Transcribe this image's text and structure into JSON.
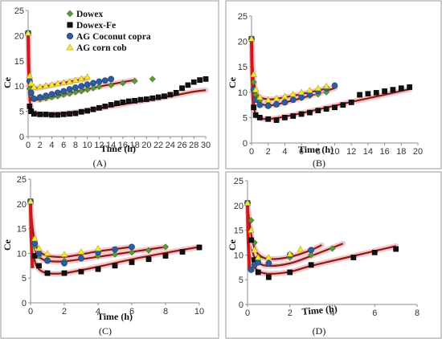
{
  "colors": {
    "dowex": "#5a9a3a",
    "dowex_fe": "#111111",
    "ag_coconut": "#2e5d9f",
    "ag_corn": "#f2ea3a",
    "fit_curve": "#8b1c10",
    "fit_shadow": "#f3c7cf",
    "fit_spike": "#cc1a1a"
  },
  "legend": [
    "Dowex",
    "Dowex-Fe",
    "AG Coconut copra",
    "AG corn cob"
  ],
  "chart_data": [
    {
      "type": "scatter",
      "panel_label": "(A)",
      "xlabel": "Time (h)",
      "ylabel": "Ce",
      "xlim": [
        0,
        30
      ],
      "ylim": [
        0,
        25
      ],
      "xticks": [
        0,
        2,
        4,
        6,
        8,
        10,
        12,
        14,
        16,
        18,
        20,
        22,
        24,
        26,
        28,
        30
      ],
      "yticks": [
        0,
        5,
        10,
        15,
        20,
        25
      ],
      "legend_position": "top-right",
      "series": [
        {
          "name": "Dowex",
          "marker": "diamond",
          "color_key": "dowex",
          "x": [
            0,
            0.25,
            0.5,
            1,
            2,
            3,
            4,
            5,
            6,
            7,
            8,
            9,
            10,
            11,
            12,
            14,
            16,
            18,
            21
          ],
          "y": [
            20.5,
            9.5,
            8.3,
            7.4,
            7.4,
            7.6,
            7.8,
            8.0,
            8.3,
            8.5,
            8.8,
            9.0,
            9.3,
            9.6,
            9.9,
            10.2,
            10.6,
            11.0,
            11.4
          ]
        },
        {
          "name": "Dowex-Fe",
          "marker": "square",
          "color_key": "dowex_fe",
          "x": [
            0,
            0.25,
            0.5,
            1,
            2,
            3,
            4,
            5,
            6,
            7,
            8,
            9,
            10,
            11,
            12,
            13,
            14,
            15,
            16,
            17,
            18,
            19,
            20,
            21,
            22,
            23,
            24,
            25,
            26,
            27,
            28,
            29,
            30
          ],
          "y": [
            20.5,
            6.0,
            5.0,
            4.5,
            4.4,
            4.4,
            4.3,
            4.3,
            4.4,
            4.5,
            4.6,
            4.9,
            5.1,
            5.4,
            5.7,
            6.0,
            6.3,
            6.6,
            6.8,
            7.0,
            7.1,
            7.3,
            7.4,
            7.6,
            7.8,
            8.0,
            8.3,
            8.7,
            9.6,
            10.2,
            10.8,
            11.2,
            11.4
          ]
        },
        {
          "name": "AG Coconut copra",
          "marker": "circle",
          "color_key": "ag_coconut",
          "x": [
            0,
            0.25,
            0.5,
            1,
            2,
            3,
            4,
            5,
            6,
            7,
            8,
            9,
            10,
            11,
            12,
            13,
            14
          ],
          "y": [
            20.5,
            11.0,
            8.7,
            7.5,
            7.8,
            8.1,
            8.4,
            8.7,
            9.0,
            9.4,
            9.7,
            10.0,
            10.3,
            10.6,
            10.9,
            11.1,
            11.4
          ]
        },
        {
          "name": "AG corn cob",
          "marker": "triangle",
          "color_key": "ag_corn",
          "x": [
            0,
            0.25,
            0.5,
            1,
            2,
            3,
            4,
            5,
            6,
            7,
            8,
            9,
            10
          ],
          "y": [
            20.5,
            12.0,
            10.5,
            9.8,
            9.9,
            10.1,
            10.3,
            10.5,
            10.7,
            10.9,
            11.2,
            11.5,
            11.8
          ]
        }
      ],
      "fit_curves": [
        {
          "x": [
            0,
            0.15,
            0.3,
            0.6,
            1,
            2,
            4,
            8,
            12,
            16,
            20,
            24,
            28,
            30
          ],
          "y": [
            20.5,
            11,
            7,
            5.2,
            4.8,
            4.4,
            4.4,
            4.8,
            5.6,
            6.4,
            7.2,
            8.0,
            8.9,
            9.2
          ]
        },
        {
          "x": [
            0,
            0.15,
            0.3,
            0.6,
            1,
            2,
            4,
            8,
            12,
            16,
            18
          ],
          "y": [
            20.5,
            13,
            9.5,
            7.8,
            7.4,
            7.3,
            7.8,
            8.9,
            9.9,
            10.8,
            11.2
          ]
        },
        {
          "x": [
            0,
            0.15,
            0.3,
            0.6,
            1,
            2,
            4,
            8,
            10
          ],
          "y": [
            20.5,
            14,
            11,
            9.8,
            9.6,
            9.7,
            10.2,
            11.1,
            11.5
          ]
        }
      ]
    },
    {
      "type": "scatter",
      "panel_label": "(B)",
      "xlabel": "Time (h)",
      "ylabel": "Ce",
      "xlim": [
        0,
        20
      ],
      "ylim": [
        0,
        25
      ],
      "xticks": [
        0,
        2,
        4,
        6,
        8,
        10,
        12,
        14,
        16,
        18,
        20
      ],
      "yticks": [
        0,
        5,
        10,
        15,
        20,
        25
      ],
      "series": [
        {
          "name": "Dowex",
          "marker": "diamond",
          "color_key": "dowex",
          "x": [
            0,
            0.25,
            0.5,
            1,
            2,
            3,
            4,
            5,
            6,
            7,
            8,
            9
          ],
          "y": [
            20.5,
            12.0,
            9.5,
            8.4,
            7.6,
            7.8,
            8.1,
            8.5,
            8.9,
            9.3,
            9.6,
            10.0
          ]
        },
        {
          "name": "Dowex-Fe",
          "marker": "square",
          "color_key": "dowex_fe",
          "x": [
            0,
            0.25,
            0.5,
            1,
            2,
            3,
            4,
            5,
            6,
            7,
            8,
            9,
            10,
            11,
            12,
            13,
            14,
            15,
            16,
            17,
            18,
            19
          ],
          "y": [
            20.5,
            7.0,
            5.5,
            5.0,
            4.7,
            4.5,
            5.0,
            5.3,
            5.7,
            6.0,
            6.4,
            6.7,
            7.0,
            7.5,
            8.0,
            9.5,
            9.7,
            9.9,
            10.2,
            10.5,
            10.8,
            11.0
          ]
        },
        {
          "name": "AG Coconut copra",
          "marker": "circle",
          "color_key": "ag_coconut",
          "x": [
            0,
            0.25,
            0.5,
            1,
            2,
            3,
            4,
            5,
            6,
            7,
            8,
            9,
            10
          ],
          "y": [
            20.5,
            10.5,
            8.5,
            7.5,
            7.3,
            7.6,
            8.0,
            8.5,
            9.0,
            9.6,
            10.2,
            10.8,
            11.3
          ]
        },
        {
          "name": "AG corn cob",
          "marker": "triangle",
          "color_key": "ag_corn",
          "x": [
            0,
            0.25,
            0.5,
            1,
            2,
            3,
            4,
            5,
            6,
            7,
            8,
            9
          ],
          "y": [
            20.5,
            13.5,
            10.5,
            9.0,
            8.5,
            8.8,
            9.2,
            9.6,
            10.0,
            10.4,
            10.8,
            11.2
          ]
        }
      ],
      "fit_curves": [
        {
          "x": [
            0,
            0.15,
            0.3,
            0.6,
            1,
            2,
            4,
            8,
            12,
            16,
            19
          ],
          "y": [
            20.5,
            11,
            7,
            5.3,
            4.9,
            4.7,
            5.2,
            6.6,
            8.1,
            9.5,
            10.6
          ]
        },
        {
          "x": [
            0,
            0.15,
            0.3,
            0.6,
            1,
            2,
            3,
            5,
            7,
            9,
            10
          ],
          "y": [
            20.5,
            14,
            10.5,
            8.6,
            7.8,
            7.4,
            7.6,
            8.4,
            9.3,
            10.3,
            10.8
          ]
        },
        {
          "x": [
            0,
            0.15,
            0.3,
            0.6,
            1,
            2,
            3,
            5,
            7,
            9
          ],
          "y": [
            20.5,
            15,
            12,
            9.8,
            9.0,
            8.6,
            8.7,
            9.3,
            10.0,
            10.7
          ]
        }
      ]
    },
    {
      "type": "scatter",
      "panel_label": "(C)",
      "xlabel": "Time (h)",
      "ylabel": "Ce",
      "xlim": [
        0,
        10
      ],
      "ylim": [
        0,
        25
      ],
      "xticks": [
        0,
        2,
        4,
        6,
        8,
        10
      ],
      "yticks": [
        0,
        5,
        10,
        15,
        20,
        25
      ],
      "series": [
        {
          "name": "Dowex",
          "marker": "diamond",
          "color_key": "dowex",
          "x": [
            0,
            0.25,
            0.5,
            1,
            2,
            3,
            4,
            5,
            6,
            7,
            8
          ],
          "y": [
            20.5,
            11.5,
            9.5,
            8.8,
            8.5,
            9.0,
            9.5,
            9.8,
            10.2,
            10.6,
            11.3
          ]
        },
        {
          "name": "Dowex-Fe",
          "marker": "square",
          "color_key": "dowex_fe",
          "x": [
            0,
            0.25,
            0.5,
            1,
            2,
            3,
            4,
            5,
            6,
            7,
            8,
            9,
            10
          ],
          "y": [
            20.5,
            9.5,
            7.5,
            6.0,
            6.0,
            6.3,
            6.8,
            7.5,
            8.2,
            8.8,
            9.5,
            10.3,
            11.2
          ]
        },
        {
          "name": "AG Coconut copra",
          "marker": "circle",
          "color_key": "ag_coconut",
          "x": [
            0,
            0.25,
            0.5,
            1,
            2,
            3,
            4,
            5,
            6
          ],
          "y": [
            20.5,
            12.0,
            10.0,
            8.5,
            8.0,
            9.0,
            10.2,
            10.8,
            11.3
          ]
        },
        {
          "name": "AG corn cob",
          "marker": "triangle",
          "color_key": "ag_corn",
          "x": [
            0,
            0.25,
            0.5,
            1,
            2,
            3,
            4
          ],
          "y": [
            20.5,
            13.0,
            11.0,
            10.0,
            9.8,
            10.3,
            11.0
          ]
        }
      ],
      "fit_curves": [
        {
          "x": [
            0,
            0.1,
            0.25,
            0.5,
            1,
            2,
            4,
            6,
            8,
            10
          ],
          "y": [
            20.5,
            13,
            8.5,
            6.8,
            6.0,
            6.0,
            7.3,
            8.8,
            10.1,
            11.3
          ]
        },
        {
          "x": [
            0,
            0.1,
            0.25,
            0.5,
            1,
            2,
            4,
            6,
            8
          ],
          "y": [
            20.5,
            15,
            11,
            9.3,
            8.5,
            8.4,
            9.3,
            10.3,
            11.3
          ]
        },
        {
          "x": [
            0,
            0.1,
            0.25,
            0.5,
            1,
            2,
            3,
            4,
            6
          ],
          "y": [
            20.5,
            16,
            12.5,
            10.5,
            9.5,
            9.3,
            9.8,
            10.4,
            11.3
          ]
        }
      ]
    },
    {
      "type": "scatter",
      "panel_label": "(D)",
      "xlabel": "Time (h)",
      "ylabel": "Ce",
      "xlim": [
        0,
        8
      ],
      "ylim": [
        0,
        25
      ],
      "xticks": [
        0,
        2,
        4,
        6,
        8
      ],
      "yticks": [
        0,
        5,
        10,
        15,
        20,
        25
      ],
      "series": [
        {
          "name": "Dowex",
          "marker": "diamond",
          "color_key": "dowex",
          "x": [
            0,
            0.17,
            0.33,
            0.5,
            1,
            2,
            3,
            4
          ],
          "y": [
            20.5,
            17.0,
            12.5,
            9.5,
            8.5,
            9.5,
            10.0,
            11.3
          ]
        },
        {
          "name": "Dowex-Fe",
          "marker": "square",
          "color_key": "dowex_fe",
          "x": [
            0,
            0.17,
            0.33,
            0.5,
            1,
            2,
            3,
            5,
            6,
            7
          ],
          "y": [
            20.5,
            13.0,
            9.0,
            6.5,
            5.5,
            6.5,
            8.0,
            9.5,
            10.5,
            11.2
          ]
        },
        {
          "name": "AG Coconut copra",
          "marker": "circle",
          "color_key": "ag_coconut",
          "x": [
            0,
            0.17,
            0.33,
            0.5,
            1,
            2,
            3
          ],
          "y": [
            20.5,
            7.0,
            8.0,
            8.5,
            8.3,
            10.0,
            11.0
          ]
        },
        {
          "name": "AG corn cob",
          "marker": "triangle",
          "color_key": "ag_corn",
          "x": [
            0,
            0.17,
            0.33,
            0.5,
            1,
            2,
            2.5
          ],
          "y": [
            20.5,
            15.0,
            11.0,
            9.5,
            9.5,
            10.2,
            11.2
          ]
        }
      ],
      "fit_curves": [
        {
          "x": [
            0,
            0.1,
            0.25,
            0.5,
            1,
            2,
            3,
            5,
            7
          ],
          "y": [
            20.5,
            13,
            8.5,
            6.8,
            6.2,
            6.6,
            7.8,
            9.8,
            11.8
          ]
        },
        {
          "x": [
            0,
            0.1,
            0.25,
            0.5,
            1,
            2,
            3,
            4.5
          ],
          "y": [
            20.5,
            15,
            10.5,
            8.5,
            7.8,
            8.3,
            9.8,
            12.3
          ]
        },
        {
          "x": [
            0,
            0.1,
            0.25,
            0.5,
            1,
            2,
            3,
            3.5
          ],
          "y": [
            20.5,
            16.5,
            12.5,
            10.2,
            9.2,
            9.6,
            11.0,
            12.0
          ]
        }
      ]
    }
  ]
}
